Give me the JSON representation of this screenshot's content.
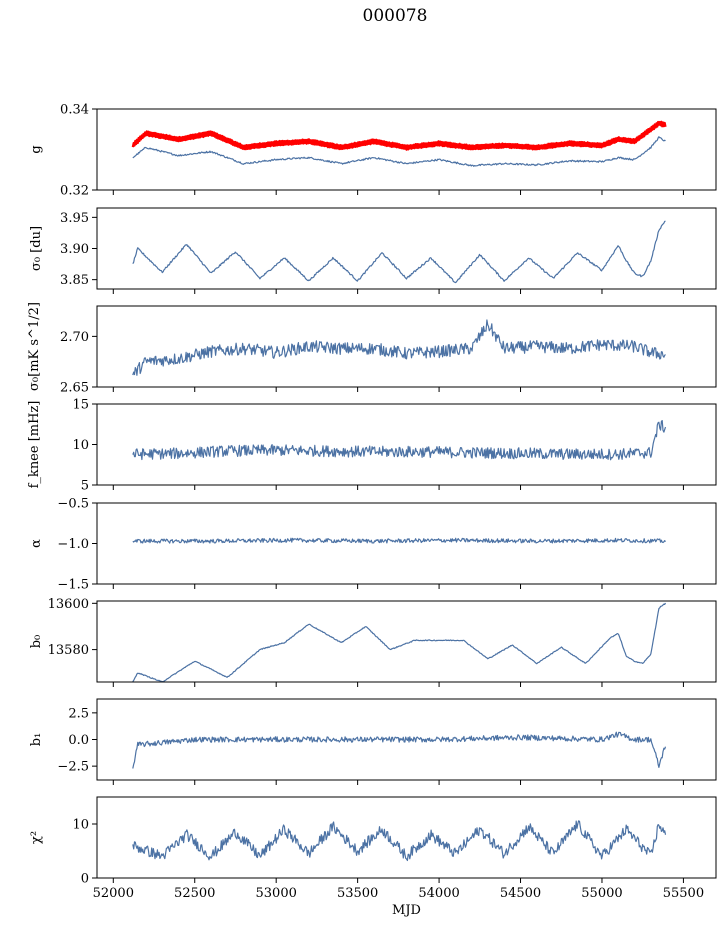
{
  "figure": {
    "title": "000078"
  },
  "colors": {
    "series": "#4c72a4",
    "highlight": "#ff0000",
    "axis": "#000000"
  },
  "chart_data": [
    {
      "type": "line",
      "ylabel": "g",
      "ylim": [
        0.32,
        0.34
      ],
      "yticks": [
        0.32,
        0.34
      ],
      "yticklabels": [
        "0.32",
        "0.34"
      ],
      "series": [
        {
          "kind": "highlight-band",
          "color": "#ff0000",
          "x": [
            52120,
            52200,
            52400,
            52600,
            52800,
            53000,
            53200,
            53400,
            53600,
            53800,
            54000,
            54200,
            54400,
            54600,
            54800,
            55000,
            55100,
            55200,
            55300,
            55350,
            55390
          ],
          "values": [
            0.331,
            0.334,
            0.3325,
            0.334,
            0.3305,
            0.3315,
            0.332,
            0.3305,
            0.332,
            0.3305,
            0.3315,
            0.3305,
            0.331,
            0.3305,
            0.3315,
            0.331,
            0.3325,
            0.332,
            0.335,
            0.3365,
            0.336
          ]
        },
        {
          "kind": "line",
          "color": "#4c72a4",
          "x": [
            52120,
            52200,
            52400,
            52600,
            52800,
            53000,
            53200,
            53400,
            53600,
            53800,
            54000,
            54200,
            54400,
            54600,
            54800,
            55000,
            55100,
            55200,
            55300,
            55350,
            55390
          ],
          "values": [
            0.328,
            0.3305,
            0.3285,
            0.3295,
            0.3265,
            0.3275,
            0.328,
            0.3265,
            0.328,
            0.3265,
            0.3275,
            0.326,
            0.3265,
            0.3262,
            0.3272,
            0.327,
            0.328,
            0.3275,
            0.3305,
            0.333,
            0.332
          ]
        }
      ]
    },
    {
      "type": "line",
      "ylabel": "σ₀ [du]",
      "ylim": [
        3.835,
        3.965
      ],
      "yticks": [
        3.85,
        3.9,
        3.95
      ],
      "yticklabels": [
        "3.85",
        "3.90",
        "3.95"
      ],
      "series": [
        {
          "kind": "line",
          "color": "#4c72a4",
          "x": [
            52120,
            52150,
            52300,
            52450,
            52600,
            52750,
            52900,
            53050,
            53200,
            53350,
            53500,
            53650,
            53800,
            53950,
            54100,
            54250,
            54400,
            54550,
            54700,
            54850,
            55000,
            55100,
            55150,
            55200,
            55250,
            55300,
            55350,
            55390
          ],
          "values": [
            3.875,
            3.9,
            3.862,
            3.907,
            3.86,
            3.895,
            3.852,
            3.885,
            3.848,
            3.885,
            3.848,
            3.893,
            3.852,
            3.885,
            3.845,
            3.89,
            3.848,
            3.885,
            3.852,
            3.893,
            3.865,
            3.905,
            3.88,
            3.86,
            3.855,
            3.88,
            3.93,
            3.945
          ]
        }
      ]
    },
    {
      "type": "line",
      "ylabel": "σ₀[mK s^1/2]",
      "ylim": [
        2.65,
        2.73
      ],
      "yticks": [
        2.65,
        2.7
      ],
      "yticklabels": [
        "2.65",
        "2.70"
      ],
      "series": [
        {
          "kind": "line",
          "color": "#4c72a4",
          "x": [
            52120,
            52200,
            52400,
            52600,
            52800,
            53000,
            53200,
            53400,
            53600,
            53800,
            54000,
            54200,
            54300,
            54400,
            54600,
            54800,
            55000,
            55200,
            55300,
            55390
          ],
          "values": [
            2.662,
            2.675,
            2.678,
            2.685,
            2.688,
            2.684,
            2.69,
            2.688,
            2.688,
            2.683,
            2.685,
            2.688,
            2.712,
            2.688,
            2.69,
            2.688,
            2.692,
            2.69,
            2.684,
            2.682
          ]
        }
      ]
    },
    {
      "type": "line",
      "ylabel": "f_knee [mHz]",
      "ylim": [
        5,
        15
      ],
      "yticks": [
        5,
        10,
        15
      ],
      "yticklabels": [
        "5",
        "10",
        "15"
      ],
      "series": [
        {
          "kind": "line",
          "color": "#4c72a4",
          "x": [
            52120,
            52400,
            52700,
            53000,
            53300,
            53600,
            53900,
            54200,
            54500,
            54800,
            55100,
            55300,
            55350,
            55390
          ],
          "values": [
            8.8,
            8.9,
            9.2,
            9.3,
            9.2,
            9.1,
            9.1,
            9.0,
            8.9,
            8.8,
            8.8,
            9.0,
            12.5,
            12.0
          ]
        }
      ]
    },
    {
      "type": "line",
      "ylabel": "α",
      "ylim": [
        -1.5,
        -0.5
      ],
      "yticks": [
        -1.5,
        -1.0,
        -0.5
      ],
      "yticklabels": [
        "−1.5",
        "−1.0",
        "−0.5"
      ],
      "series": [
        {
          "kind": "line",
          "color": "#4c72a4",
          "x": [
            52120,
            52600,
            53100,
            53600,
            54100,
            54600,
            55100,
            55390
          ],
          "values": [
            -0.97,
            -0.97,
            -0.96,
            -0.97,
            -0.96,
            -0.97,
            -0.96,
            -0.97
          ]
        }
      ]
    },
    {
      "type": "line",
      "ylabel": "b₀",
      "ylim": [
        13566,
        13601
      ],
      "yticks": [
        13580,
        13600
      ],
      "yticklabels": [
        "13580",
        "13600"
      ],
      "series": [
        {
          "kind": "line",
          "color": "#4c72a4",
          "x": [
            52120,
            52150,
            52300,
            52500,
            52700,
            52900,
            53050,
            53200,
            53400,
            53550,
            53700,
            53850,
            54000,
            54150,
            54300,
            54450,
            54600,
            54750,
            54900,
            55050,
            55100,
            55150,
            55200,
            55250,
            55300,
            55350,
            55390
          ],
          "values": [
            13566,
            13570,
            13566,
            13575,
            13568,
            13580,
            13583,
            13591,
            13583,
            13590,
            13580,
            13584,
            13584,
            13584,
            13576,
            13582,
            13574,
            13581,
            13574,
            13585,
            13587,
            13577,
            13575,
            13574,
            13578,
            13598,
            13600
          ]
        }
      ]
    },
    {
      "type": "line",
      "ylabel": "b₁",
      "ylim": [
        -3.8,
        3.8
      ],
      "yticks": [
        -2.5,
        0.0,
        2.5
      ],
      "yticklabels": [
        "−2.5",
        "0.0",
        "2.5"
      ],
      "series": [
        {
          "kind": "line",
          "color": "#4c72a4",
          "x": [
            52120,
            52150,
            52500,
            53000,
            53500,
            54000,
            54500,
            55000,
            55100,
            55200,
            55300,
            55350,
            55390
          ],
          "values": [
            -2.7,
            -0.5,
            0.0,
            0.0,
            0.0,
            0.0,
            0.2,
            0.0,
            0.5,
            0.0,
            0.0,
            -2.5,
            -0.5
          ]
        }
      ]
    },
    {
      "type": "line",
      "ylabel": "χ²",
      "xlabel": "MJD",
      "ylim": [
        0,
        15
      ],
      "yticks": [
        0,
        10
      ],
      "yticklabels": [
        "0",
        "10"
      ],
      "xlim": [
        51900,
        55700
      ],
      "xticks": [
        52000,
        52500,
        53000,
        53500,
        54000,
        54500,
        55000,
        55500
      ],
      "xticklabels": [
        "52000",
        "52500",
        "53000",
        "53500",
        "54000",
        "54500",
        "55000",
        "55500"
      ],
      "series": [
        {
          "kind": "line",
          "color": "#4c72a4",
          "x": [
            52120,
            52300,
            52450,
            52600,
            52750,
            52900,
            53050,
            53200,
            53350,
            53500,
            53650,
            53800,
            53950,
            54100,
            54250,
            54400,
            54550,
            54700,
            54850,
            55000,
            55150,
            55300,
            55350,
            55390
          ],
          "values": [
            6,
            4,
            8,
            4,
            8.5,
            4,
            9,
            4.5,
            9.5,
            5,
            9,
            4,
            8,
            4.5,
            9,
            4.5,
            9.5,
            4.5,
            10,
            4,
            9,
            4,
            10,
            8
          ]
        }
      ]
    }
  ]
}
